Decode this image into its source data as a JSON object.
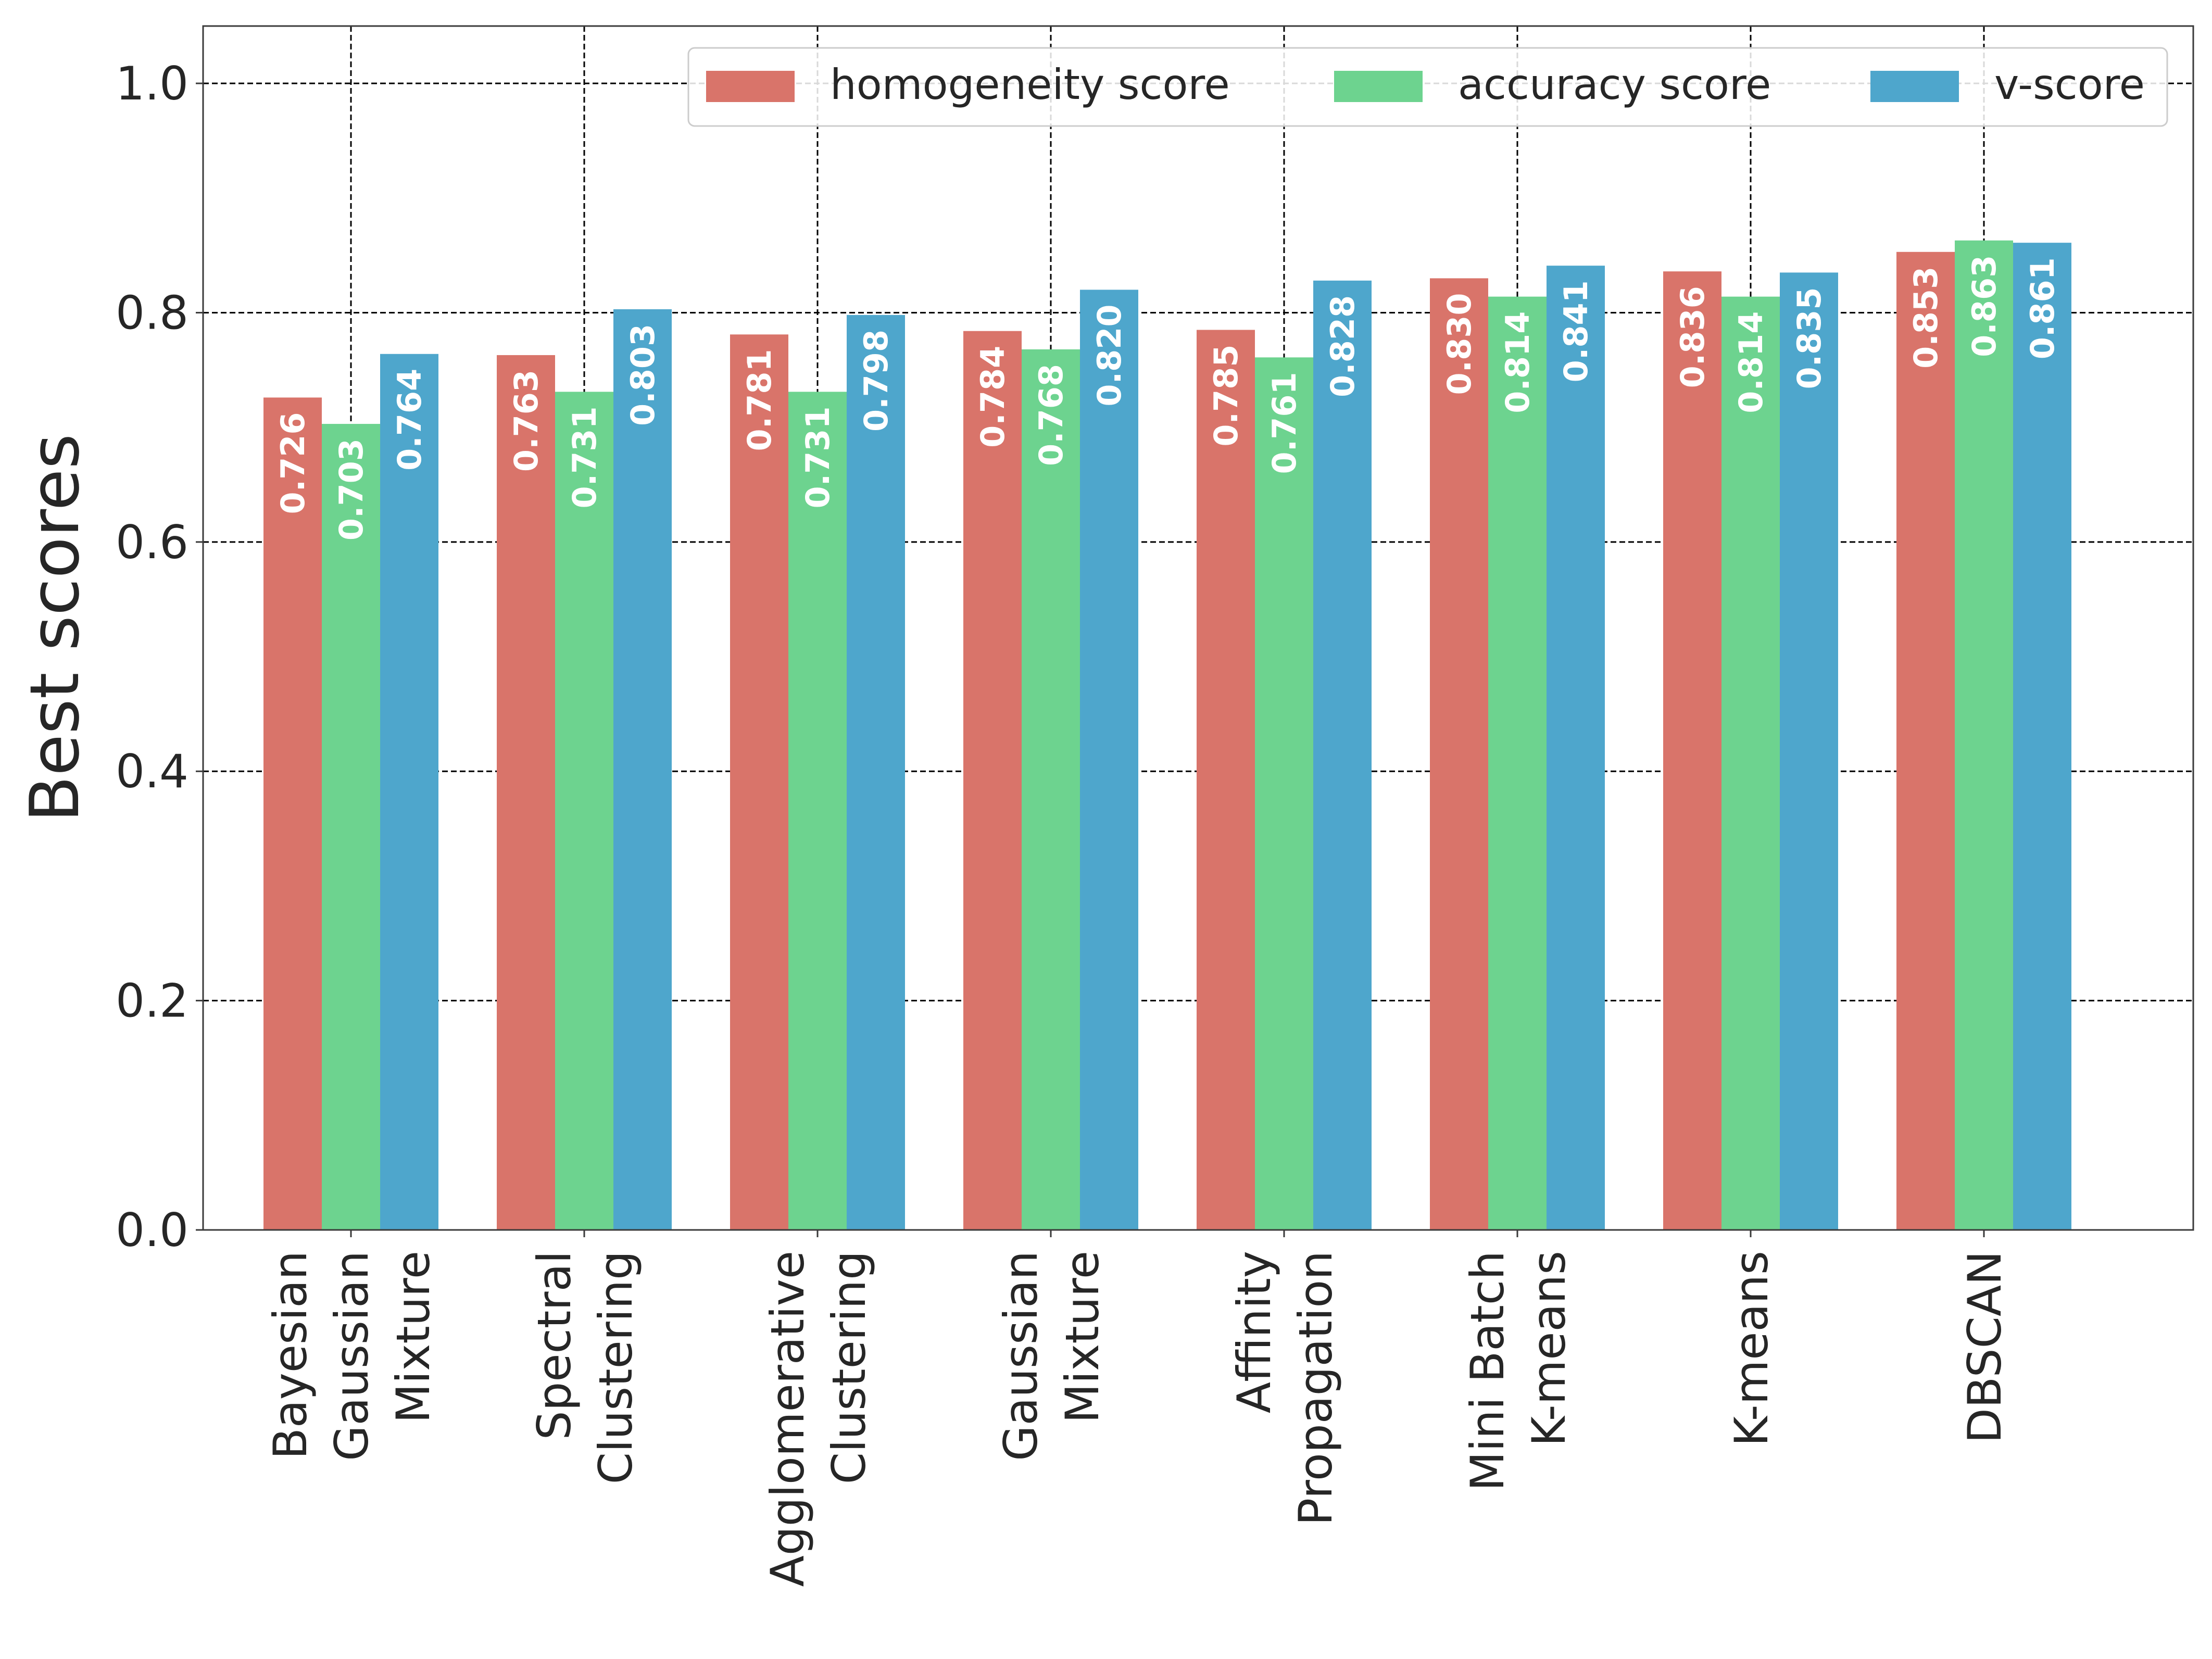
{
  "chart_data": {
    "type": "bar",
    "title": "",
    "xlabel": "",
    "ylabel": "Best scores",
    "ylim": [
      0,
      1.05
    ],
    "yticks": [
      "0.0",
      "0.2",
      "0.4",
      "0.6",
      "0.8",
      "1.0"
    ],
    "ytick_values": [
      0,
      0.2,
      0.4,
      0.6,
      0.8,
      1.0
    ],
    "grid": true,
    "legend_position": "top-right",
    "categories": [
      [
        "Bayesian",
        "Gaussian",
        "Mixture"
      ],
      [
        "Spectral",
        "Clustering"
      ],
      [
        "Agglomerative",
        "Clustering"
      ],
      [
        "Gaussian",
        "Mixture"
      ],
      [
        "Affinity",
        "Propagation"
      ],
      [
        "Mini Batch",
        "K-means"
      ],
      [
        "K-means"
      ],
      [
        "DBSCAN"
      ]
    ],
    "series": [
      {
        "name": "homogeneity score",
        "color": "#d9746a",
        "values": [
          0.726,
          0.763,
          0.781,
          0.784,
          0.785,
          0.83,
          0.836,
          0.853
        ],
        "labels": [
          "0.726",
          "0.763",
          "0.781",
          "0.784",
          "0.785",
          "0.830",
          "0.836",
          "0.853"
        ]
      },
      {
        "name": "accuracy score",
        "color": "#6dd38f",
        "values": [
          0.703,
          0.731,
          0.731,
          0.768,
          0.761,
          0.814,
          0.814,
          0.863
        ],
        "labels": [
          "0.703",
          "0.731",
          "0.731",
          "0.768",
          "0.761",
          "0.814",
          "0.814",
          "0.863"
        ]
      },
      {
        "name": "v-score",
        "color": "#4ea6cc",
        "values": [
          0.764,
          0.803,
          0.798,
          0.82,
          0.828,
          0.841,
          0.835,
          0.861
        ],
        "labels": [
          "0.764",
          "0.803",
          "0.798",
          "0.820",
          "0.828",
          "0.841",
          "0.835",
          "0.861"
        ]
      }
    ]
  }
}
